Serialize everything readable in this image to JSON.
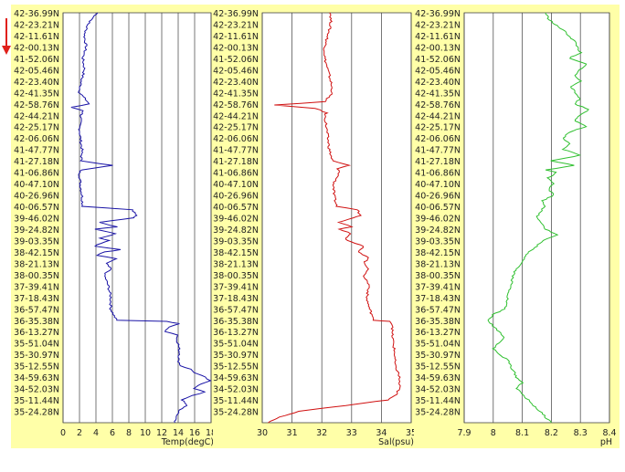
{
  "chart_data": [
    {
      "type": "line",
      "xlabel": "Temp(degC)",
      "xlim": [
        0,
        18
      ],
      "xticks": [
        0,
        2,
        4,
        6,
        8,
        10,
        12,
        14,
        16,
        18
      ],
      "color": "#1a14a6",
      "ylabels": [
        "42-36.99N",
        "42-23.21N",
        "42-11.61N",
        "42-00.13N",
        "41-52.06N",
        "42-05.46N",
        "42-23.40N",
        "42-41.35N",
        "42-58.76N",
        "42-44.21N",
        "42-25.17N",
        "42-06.06N",
        "41-47.77N",
        "41-27.18N",
        "41-06.86N",
        "40-47.10N",
        "40-26.96N",
        "40-06.57N",
        "39-46.02N",
        "39-24.82N",
        "39-03.35N",
        "38-42.15N",
        "38-21.13N",
        "38-00.35N",
        "37-39.41N",
        "37-18.43N",
        "36-57.47N",
        "36-35.38N",
        "36-13.27N",
        "35-51.04N",
        "35-30.97N",
        "35-12.55N",
        "34-59.63N",
        "34-52.03N",
        "35-11.44N",
        "35-24.28N"
      ],
      "profile": [
        [
          0,
          4.2
        ],
        [
          1,
          3.0
        ],
        [
          2,
          2.6
        ],
        [
          3,
          2.8
        ],
        [
          4,
          2.4
        ],
        [
          5,
          2.6
        ],
        [
          6,
          2.2
        ],
        [
          7,
          2.0
        ],
        [
          8,
          3.2
        ],
        [
          8.3,
          1.0
        ],
        [
          8.6,
          2.5
        ],
        [
          9,
          2.2
        ],
        [
          10,
          2.0
        ],
        [
          11,
          2.1
        ],
        [
          12,
          2.3
        ],
        [
          13,
          2.2
        ],
        [
          13.4,
          6.0
        ],
        [
          13.8,
          2.2
        ],
        [
          14,
          2.0
        ],
        [
          15,
          2.1
        ],
        [
          16,
          2.3
        ],
        [
          17,
          2.4
        ],
        [
          17.3,
          8.5
        ],
        [
          17.8,
          8.9
        ],
        [
          18,
          8.5
        ],
        [
          18.4,
          4.5
        ],
        [
          18.8,
          6.5
        ],
        [
          19,
          4.0
        ],
        [
          19.4,
          6.5
        ],
        [
          19.8,
          4.5
        ],
        [
          20,
          5.5
        ],
        [
          20.5,
          3.8
        ],
        [
          20.8,
          7.0
        ],
        [
          21,
          5.0
        ],
        [
          21.3,
          4.0
        ],
        [
          21.6,
          6.5
        ],
        [
          22,
          5.2
        ],
        [
          22.5,
          5.8
        ],
        [
          23,
          5.0
        ],
        [
          24,
          5.5
        ],
        [
          25,
          5.8
        ],
        [
          26,
          5.8
        ],
        [
          26.6,
          6.2
        ],
        [
          27,
          6.5
        ],
        [
          27.1,
          12.5
        ],
        [
          27.3,
          14.2
        ],
        [
          27.6,
          12.8
        ],
        [
          28,
          12.5
        ],
        [
          28.3,
          14.0
        ],
        [
          28.6,
          13.8
        ],
        [
          29,
          14.0
        ],
        [
          30,
          14.2
        ],
        [
          30.5,
          14.0
        ],
        [
          31,
          14.3
        ],
        [
          31.3,
          15.5
        ],
        [
          31.6,
          16.0
        ],
        [
          32,
          17.2
        ],
        [
          32.3,
          17.8
        ],
        [
          32.6,
          16.8
        ],
        [
          33,
          16.0
        ],
        [
          33.3,
          17.2
        ],
        [
          33.6,
          15.8
        ],
        [
          34,
          14.5
        ],
        [
          34.5,
          15.0
        ],
        [
          35,
          14.0
        ],
        [
          35.5,
          13.8
        ],
        [
          36,
          13.6
        ]
      ]
    },
    {
      "type": "line",
      "xlabel": "Sal(psu)",
      "xlim": [
        30,
        35
      ],
      "xticks": [
        30,
        31,
        32,
        33,
        34,
        35
      ],
      "color": "#d01010",
      "ylabels": [
        "42-36.99N",
        "42-23.21N",
        "42-11.61N",
        "42-00.13N",
        "41-52.06N",
        "42-05.46N",
        "42-23.40N",
        "42-41.35N",
        "42-58.76N",
        "42-44.21N",
        "42-25.17N",
        "42-06.06N",
        "41-47.77N",
        "41-27.18N",
        "41-06.86N",
        "40-47.10N",
        "40-26.96N",
        "40-06.57N",
        "39-46.02N",
        "39-24.82N",
        "39-03.35N",
        "38-42.15N",
        "38-21.13N",
        "38-00.35N",
        "37-39.41N",
        "37-18.43N",
        "36-57.47N",
        "36-35.38N",
        "36-13.27N",
        "35-51.04N",
        "35-30.97N",
        "35-12.55N",
        "34-59.63N",
        "34-52.03N",
        "35-11.44N",
        "35-24.28N"
      ],
      "profile": [
        [
          0,
          32.3
        ],
        [
          1,
          32.3
        ],
        [
          2,
          32.2
        ],
        [
          3,
          32.1
        ],
        [
          4,
          32.1
        ],
        [
          5,
          32.2
        ],
        [
          6,
          32.3
        ],
        [
          7,
          32.35
        ],
        [
          7.8,
          32.1
        ],
        [
          8.1,
          30.4
        ],
        [
          8.4,
          31.8
        ],
        [
          8.8,
          32.15
        ],
        [
          9,
          32.1
        ],
        [
          10,
          32.15
        ],
        [
          11,
          32.2
        ],
        [
          12,
          32.25
        ],
        [
          13,
          32.35
        ],
        [
          13.4,
          32.9
        ],
        [
          13.7,
          32.5
        ],
        [
          14,
          32.6
        ],
        [
          14.5,
          32.5
        ],
        [
          15,
          32.4
        ],
        [
          16,
          32.4
        ],
        [
          17,
          32.5
        ],
        [
          17.3,
          33.2
        ],
        [
          17.8,
          33.3
        ],
        [
          18,
          33.1
        ],
        [
          18.4,
          32.6
        ],
        [
          18.8,
          33.0
        ],
        [
          19,
          32.6
        ],
        [
          19.4,
          33.0
        ],
        [
          19.8,
          32.8
        ],
        [
          20,
          32.9
        ],
        [
          20.5,
          33.4
        ],
        [
          21,
          33.2
        ],
        [
          21.5,
          33.6
        ],
        [
          22,
          33.4
        ],
        [
          22.5,
          33.6
        ],
        [
          23,
          33.4
        ],
        [
          24,
          33.6
        ],
        [
          25,
          33.5
        ],
        [
          26,
          33.6
        ],
        [
          26.6,
          33.7
        ],
        [
          27,
          33.7
        ],
        [
          27.1,
          34.3
        ],
        [
          27.5,
          34.4
        ],
        [
          28,
          34.35
        ],
        [
          29,
          34.4
        ],
        [
          30,
          34.45
        ],
        [
          31,
          34.45
        ],
        [
          31.5,
          34.55
        ],
        [
          32,
          34.6
        ],
        [
          33,
          34.6
        ],
        [
          33.5,
          34.5
        ],
        [
          34,
          34.2
        ],
        [
          34.5,
          32.8
        ],
        [
          35,
          31.2
        ],
        [
          35.5,
          30.6
        ],
        [
          36,
          30.2
        ]
      ]
    },
    {
      "type": "line",
      "xlabel": "pH",
      "xlim": [
        7.9,
        8.4
      ],
      "xticks": [
        7.9,
        8,
        8.1,
        8.2,
        8.3,
        8.4
      ],
      "color": "#30c030",
      "ylabels": [
        "42-36.99N",
        "42-23.21N",
        "42-11.61N",
        "42-00.13N",
        "41-52.06N",
        "42-05.46N",
        "42-23.40N",
        "42-41.35N",
        "42-58.76N",
        "42-44.21N",
        "42-25.17N",
        "42-06.06N",
        "41-47.77N",
        "41-27.18N",
        "41-06.86N",
        "40-47.10N",
        "40-26.96N",
        "40-06.57N",
        "39-46.02N",
        "39-24.82N",
        "39-03.35N",
        "38-42.15N",
        "38-21.13N",
        "38-00.35N",
        "37-39.41N",
        "37-18.43N",
        "36-57.47N",
        "36-35.38N",
        "36-13.27N",
        "35-51.04N",
        "35-30.97N",
        "35-12.55N",
        "34-59.63N",
        "34-52.03N",
        "35-11.44N",
        "35-24.28N"
      ],
      "profile": [
        [
          0,
          8.18
        ],
        [
          0.5,
          8.19
        ],
        [
          1,
          8.21
        ],
        [
          1.5,
          8.24
        ],
        [
          2,
          8.26
        ],
        [
          2.5,
          8.28
        ],
        [
          3,
          8.29
        ],
        [
          3.5,
          8.3
        ],
        [
          4,
          8.26
        ],
        [
          4.5,
          8.32
        ],
        [
          5,
          8.3
        ],
        [
          5.5,
          8.28
        ],
        [
          6,
          8.3
        ],
        [
          6.5,
          8.27
        ],
        [
          7,
          8.28
        ],
        [
          7.5,
          8.3
        ],
        [
          8,
          8.28
        ],
        [
          8.5,
          8.33
        ],
        [
          9,
          8.3
        ],
        [
          9.5,
          8.28
        ],
        [
          10,
          8.32
        ],
        [
          10.5,
          8.26
        ],
        [
          11,
          8.24
        ],
        [
          11.5,
          8.26
        ],
        [
          12,
          8.24
        ],
        [
          12.5,
          8.3
        ],
        [
          13,
          8.2
        ],
        [
          13.4,
          8.28
        ],
        [
          13.8,
          8.18
        ],
        [
          14,
          8.22
        ],
        [
          14.5,
          8.19
        ],
        [
          15,
          8.21
        ],
        [
          15.5,
          8.19
        ],
        [
          16,
          8.21
        ],
        [
          16.5,
          8.17
        ],
        [
          17,
          8.18
        ],
        [
          17.5,
          8.16
        ],
        [
          18,
          8.15
        ],
        [
          18.5,
          8.17
        ],
        [
          19,
          8.18
        ],
        [
          19.5,
          8.22
        ],
        [
          20,
          8.17
        ],
        [
          20.5,
          8.15
        ],
        [
          21,
          8.12
        ],
        [
          21.5,
          8.11
        ],
        [
          22,
          8.1
        ],
        [
          22.5,
          8.08
        ],
        [
          23,
          8.07
        ],
        [
          24,
          8.06
        ],
        [
          25,
          8.05
        ],
        [
          26,
          8.04
        ],
        [
          26.5,
          8.0
        ],
        [
          27,
          7.98
        ],
        [
          27.5,
          8.0
        ],
        [
          28,
          8.02
        ],
        [
          28.5,
          8.04
        ],
        [
          29,
          8.02
        ],
        [
          29.5,
          8.0
        ],
        [
          30,
          8.02
        ],
        [
          30.5,
          8.05
        ],
        [
          31,
          8.06
        ],
        [
          31.5,
          8.07
        ],
        [
          32,
          8.08
        ],
        [
          32.5,
          8.1
        ],
        [
          33,
          8.08
        ],
        [
          33.5,
          8.1
        ],
        [
          34,
          8.12
        ],
        [
          34.5,
          8.14
        ],
        [
          35,
          8.16
        ],
        [
          35.5,
          8.18
        ],
        [
          36,
          8.2
        ]
      ]
    }
  ]
}
